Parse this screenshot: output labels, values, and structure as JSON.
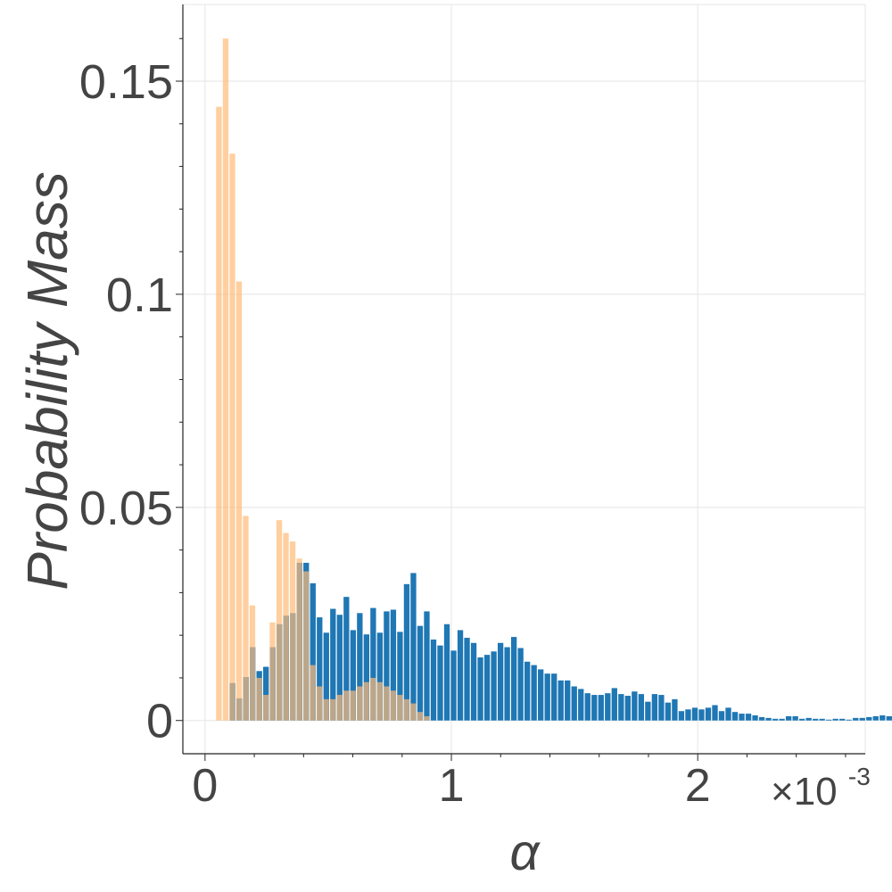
{
  "chart_data": {
    "type": "bar",
    "xlabel": "α",
    "ylabel": "Probability Mass",
    "x_multiplier_label": "×10",
    "x_multiplier_exponent": "-3",
    "xlim": [
      -0.09,
      2.68
    ],
    "ylim": [
      -0.0078,
      0.168
    ],
    "bin_width": 0.0272,
    "x_ticks": [
      {
        "value": 0,
        "label": "0"
      },
      {
        "value": 1,
        "label": "1"
      },
      {
        "value": 2,
        "label": "2"
      }
    ],
    "y_ticks": [
      {
        "value": 0,
        "label": "0"
      },
      {
        "value": 0.05,
        "label": "0.05"
      },
      {
        "value": 0.1,
        "label": "0.1"
      },
      {
        "value": 0.15,
        "label": "0.15"
      }
    ],
    "grid": true,
    "colors": {
      "blue": "#1f77b4",
      "orange": "#ffbb78",
      "overlap": "#7f7866"
    },
    "series": [
      {
        "color": "#1f77b4",
        "opacity": 1.0,
        "x_start": 0.1,
        "values": [
          0.0088,
          0.0052,
          0.0102,
          0.0172,
          0.0116,
          0.0126,
          0.0172,
          0.0226,
          0.0246,
          0.0252,
          0.037,
          0.037,
          0.0322,
          0.0242,
          0.0206,
          0.0262,
          0.0248,
          0.029,
          0.0212,
          0.0252,
          0.0202,
          0.0264,
          0.0206,
          0.0256,
          0.026,
          0.0208,
          0.032,
          0.0346,
          0.0222,
          0.0256,
          0.019,
          0.0176,
          0.0226,
          0.0164,
          0.0212,
          0.0194,
          0.0182,
          0.0148,
          0.0154,
          0.0162,
          0.0182,
          0.0172,
          0.0196,
          0.017,
          0.0138,
          0.013,
          0.012,
          0.011,
          0.011,
          0.0094,
          0.0094,
          0.008,
          0.0074,
          0.0064,
          0.006,
          0.006,
          0.0064,
          0.0076,
          0.0062,
          0.0058,
          0.0068,
          0.0062,
          0.0044,
          0.0062,
          0.006,
          0.0042,
          0.005,
          0.0022,
          0.0026,
          0.003,
          0.0026,
          0.003,
          0.0036,
          0.0022,
          0.003,
          0.002,
          0.0016,
          0.0016,
          0.0012,
          0.0008,
          0.0006,
          0.0004,
          0.0004,
          0.001,
          0.001,
          0.0004,
          0.0006,
          0.0004,
          0.0004,
          0.0002,
          0.0004,
          0.0004,
          0.0002,
          0.0006,
          0.0006,
          0.0008,
          0.001,
          0.0012,
          0.001,
          0.0002,
          0.0004,
          0.0004,
          0.0004
        ]
      },
      {
        "color": "#ffbb78",
        "opacity": 0.7,
        "x_start": 0.045,
        "values": [
          0.144,
          0.16,
          0.133,
          0.103,
          0.048,
          0.027,
          0.01,
          0.006,
          0.023,
          0.047,
          0.044,
          0.042,
          0.038,
          0.035,
          0.013,
          0.008,
          0.005,
          0.005,
          0.006,
          0.007,
          0.007,
          0.008,
          0.009,
          0.01,
          0.009,
          0.008,
          0.007,
          0.006,
          0.005,
          0.004,
          0.002,
          0.001
        ]
      }
    ]
  }
}
